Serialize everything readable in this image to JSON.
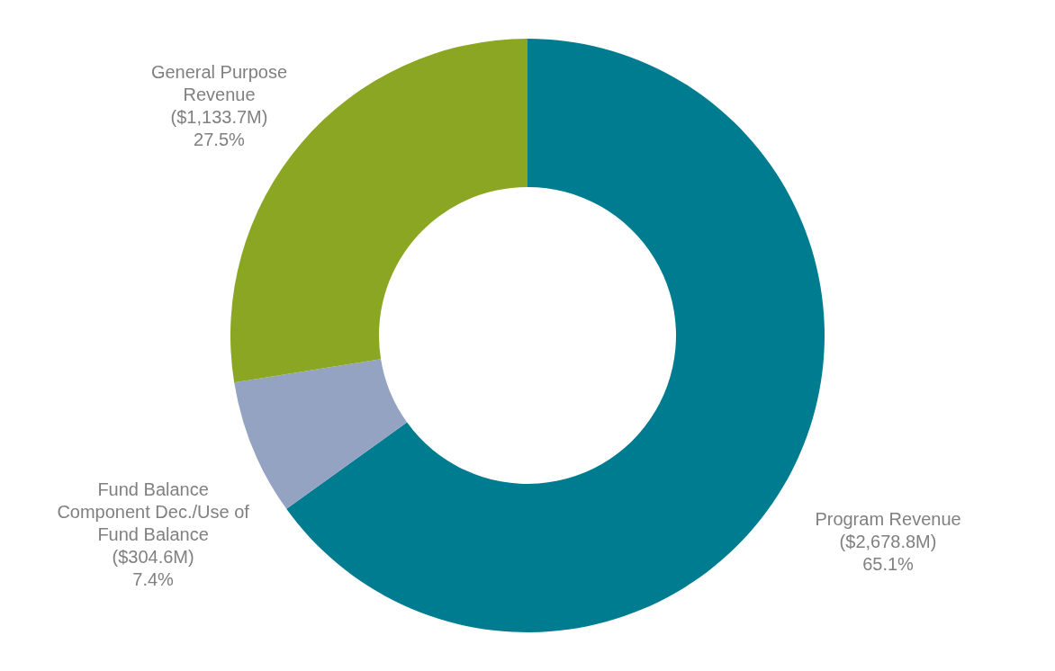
{
  "chart_data": {
    "type": "donut",
    "categories": [
      "Program Revenue",
      "Fund Balance Component Dec./Use of Fund Balance",
      "General Purpose Revenue"
    ],
    "values": [
      2678.8,
      304.6,
      1133.7
    ],
    "value_labels": [
      "($2,678.8M)",
      "($304.6M)",
      "($1,133.7M)"
    ],
    "annotations": [
      "65.1%",
      "7.4%",
      "27.5%"
    ],
    "colors": [
      "#007c91",
      "#93a3c1",
      "#8aa623"
    ]
  }
}
